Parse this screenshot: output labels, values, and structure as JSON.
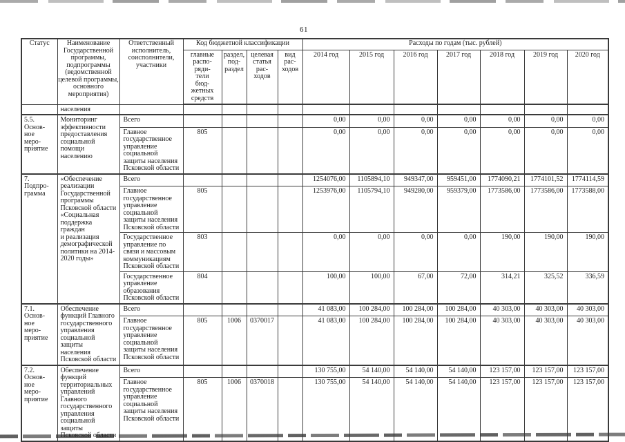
{
  "page_number": "61",
  "colors": {
    "text": "#1c1c1c",
    "border": "#3a3a3a",
    "paper": "#ffffff",
    "scan_artifact": "#9b9b9b"
  },
  "table": {
    "headers": {
      "status": "Статус",
      "program": "Наименование\nГосударственной\nпрограммы,\nподпрограммы\n(ведомственной\nцелевой программы,\nосновного\nмероприятия)",
      "executor": "Ответственный\nисполнитель,\nсоисполнители,\nучастники",
      "budget_code": "Код бюджетной классификации",
      "expenses": "Расходы по годам (тыс. рублей)",
      "budget_subcols": [
        "главные\nраспо-\nряди-\nтели\nбюд-\nжетных\nсредств",
        "раздел,\nпод-\nраздел",
        "целевая\nстатья\nрас-\nходов",
        "вид\nрас-\nходов"
      ],
      "years": [
        "2014 год",
        "2015 год",
        "2016 год",
        "2017 год",
        "2018 год",
        "2019 год",
        "2020 год"
      ]
    },
    "continuation_text": "населения",
    "sections": [
      {
        "status": "5.5.\nОснов-\nное\nмеро-\nприятие",
        "name": "Мониторинг\nэффективности\nпредоставления\nсоциальной помощи\nнаселению",
        "rows": [
          {
            "executor": "Всего",
            "total": true,
            "codes": [
              "",
              "",
              "",
              ""
            ],
            "values": [
              "0,00",
              "0,00",
              "0,00",
              "0,00",
              "0,00",
              "0,00",
              "0,00"
            ]
          },
          {
            "executor": "Главное\nгосударственное\nуправление\nсоциальной\nзащиты населения\nПсковской области",
            "codes": [
              "805",
              "",
              "",
              ""
            ],
            "values": [
              "0,00",
              "0,00",
              "0,00",
              "0,00",
              "0,00",
              "0,00",
              "0,00"
            ]
          }
        ]
      },
      {
        "status": "7.\nПодпро-\nграмма",
        "name": "«Обеспечение\nреализации\nГосударственной\nпрограммы\nПсковской области\n«Социальная\nподдержка граждан\nи реализация\nдемографической\nполитики на 2014-\n2020 годы»",
        "rows": [
          {
            "executor": "Всего",
            "total": true,
            "codes": [
              "",
              "",
              "",
              ""
            ],
            "values": [
              "1254076,00",
              "1105894,10",
              "949347,00",
              "959451,00",
              "1774090,21",
              "1774101,52",
              "1774114,59"
            ]
          },
          {
            "executor": "Главное\nгосударственное\nуправление\nсоциальной\nзащиты населения\nПсковской области",
            "codes": [
              "805",
              "",
              "",
              ""
            ],
            "values": [
              "1253976,00",
              "1105794,10",
              "949280,00",
              "959379,00",
              "1773586,00",
              "1773586,00",
              "1773588,00"
            ]
          },
          {
            "executor": "Государственное\nуправление по\nсвязи и массовым\nкоммуникациям\nПсковской области",
            "codes": [
              "803",
              "",
              "",
              ""
            ],
            "values": [
              "0,00",
              "0,00",
              "0,00",
              "0,00",
              "190,00",
              "190,00",
              "190,00"
            ]
          },
          {
            "executor": "Государственное\nуправление\nобразования\nПсковской области",
            "codes": [
              "804",
              "",
              "",
              ""
            ],
            "values": [
              "100,00",
              "100,00",
              "67,00",
              "72,00",
              "314,21",
              "325,52",
              "336,59"
            ]
          }
        ]
      },
      {
        "status": "7.1.\nОснов-\nное\nмеро-\nприятие",
        "name": "Обеспечение\nфункций Главного\nгосударственного\nуправления\nсоциальной защиты\nнаселения\nПсковской области",
        "rows": [
          {
            "executor": "Всего",
            "total": true,
            "codes": [
              "",
              "",
              "",
              ""
            ],
            "values": [
              "41 083,00",
              "100 284,00",
              "100 284,00",
              "100 284,00",
              "40 303,00",
              "40 303,00",
              "40 303,00"
            ]
          },
          {
            "executor": "Главное\nгосударственное\nуправление\nсоциальной\nзащиты населения\nПсковской области",
            "codes": [
              "805",
              "1006",
              "0370017",
              ""
            ],
            "values": [
              "41 083,00",
              "100 284,00",
              "100 284,00",
              "100 284,00",
              "40 303,00",
              "40 303,00",
              "40 303,00"
            ]
          }
        ]
      },
      {
        "status": "7.2.\nОснов-\nное\nмеро-\nприятие",
        "name": "Обеспечение\nфункций\nтерриториальных\nуправлений\nГлавного\nгосударственного\nуправления\nсоциальной защиты\nПсковской области",
        "rows": [
          {
            "executor": "Всего",
            "total": true,
            "codes": [
              "",
              "",
              "",
              ""
            ],
            "values": [
              "130 755,00",
              "54 140,00",
              "54 140,00",
              "54 140,00",
              "123 157,00",
              "123 157,00",
              "123 157,00"
            ]
          },
          {
            "executor": "Главное\nгосударственное\nуправление\nсоциальной\nзащиты населения\nПсковской области",
            "codes": [
              "805",
              "1006",
              "0370018",
              ""
            ],
            "values": [
              "130 755,00",
              "54 140,00",
              "54 140,00",
              "54 140,00",
              "123 157,00",
              "123 157,00",
              "123 157,00"
            ]
          }
        ]
      }
    ]
  }
}
